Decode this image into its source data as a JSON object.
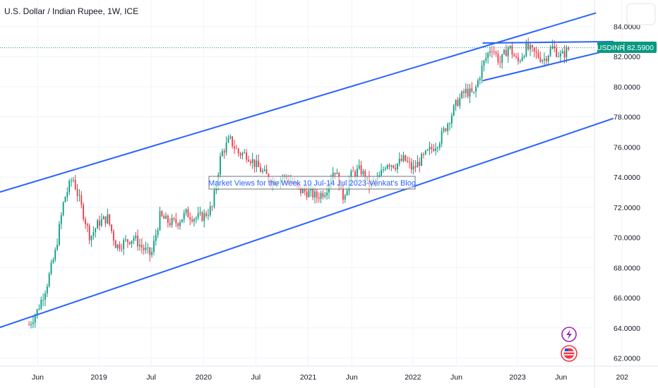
{
  "chart_title": "U.S. Dollar / Indian Rupee, 1W, ICE",
  "chart_data": {
    "type": "candlestick",
    "symbol": "USDINR",
    "last_price": "82.5900",
    "ylim": [
      61.5,
      84.5
    ],
    "y_ticks": [
      "84.0000",
      "82.0000",
      "80.0000",
      "78.0000",
      "76.0000",
      "74.0000",
      "72.0000",
      "70.0000",
      "68.0000",
      "66.0000",
      "64.0000",
      "62.0000"
    ],
    "x_ticks": [
      "Jun",
      "2019",
      "Jul",
      "2020",
      "Jul",
      "2021",
      "Jun",
      "2022",
      "Jun",
      "2023",
      "Jun",
      "202"
    ],
    "annotation": "Market Views for the Week 10 Jul-14 Jul 2023-Venkat's Blog",
    "colors": {
      "up": "#089981",
      "down": "#f23645",
      "trendline": "#2962ff",
      "last_price": "#089981"
    },
    "series": [
      {
        "name": "USDINR",
        "points": [
          {
            "t": "2018-05",
            "v": 64.2
          },
          {
            "t": "2018-06",
            "v": 65.2
          },
          {
            "t": "2018-07",
            "v": 66.8
          },
          {
            "t": "2018-08",
            "v": 69.0
          },
          {
            "t": "2018-09",
            "v": 72.5
          },
          {
            "t": "2018-10",
            "v": 74.0
          },
          {
            "t": "2018-11",
            "v": 72.0
          },
          {
            "t": "2018-12",
            "v": 70.0
          },
          {
            "t": "2019-01",
            "v": 71.0
          },
          {
            "t": "2019-02",
            "v": 71.3
          },
          {
            "t": "2019-03",
            "v": 69.4
          },
          {
            "t": "2019-04",
            "v": 69.7
          },
          {
            "t": "2019-05",
            "v": 70.0
          },
          {
            "t": "2019-06",
            "v": 69.3
          },
          {
            "t": "2019-07",
            "v": 68.8
          },
          {
            "t": "2019-08",
            "v": 71.4
          },
          {
            "t": "2019-09",
            "v": 71.0
          },
          {
            "t": "2019-10",
            "v": 71.0
          },
          {
            "t": "2019-11",
            "v": 71.6
          },
          {
            "t": "2019-12",
            "v": 71.3
          },
          {
            "t": "2020-01",
            "v": 71.4
          },
          {
            "t": "2020-02",
            "v": 72.0
          },
          {
            "t": "2020-03",
            "v": 75.5
          },
          {
            "t": "2020-04",
            "v": 76.5
          },
          {
            "t": "2020-05",
            "v": 75.6
          },
          {
            "t": "2020-06",
            "v": 75.5
          },
          {
            "t": "2020-07",
            "v": 74.8
          },
          {
            "t": "2020-08",
            "v": 74.2
          },
          {
            "t": "2020-09",
            "v": 73.7
          },
          {
            "t": "2020-10",
            "v": 74.0
          },
          {
            "t": "2020-11",
            "v": 73.8
          },
          {
            "t": "2020-12",
            "v": 73.1
          },
          {
            "t": "2021-01",
            "v": 73.0
          },
          {
            "t": "2021-02",
            "v": 72.7
          },
          {
            "t": "2021-03",
            "v": 73.1
          },
          {
            "t": "2021-04",
            "v": 74.6
          },
          {
            "t": "2021-05",
            "v": 72.7
          },
          {
            "t": "2021-06",
            "v": 74.2
          },
          {
            "t": "2021-07",
            "v": 74.5
          },
          {
            "t": "2021-08",
            "v": 73.5
          },
          {
            "t": "2021-09",
            "v": 73.8
          },
          {
            "t": "2021-10",
            "v": 75.0
          },
          {
            "t": "2021-11",
            "v": 74.8
          },
          {
            "t": "2021-12",
            "v": 75.2
          },
          {
            "t": "2022-01",
            "v": 74.5
          },
          {
            "t": "2022-02",
            "v": 75.2
          },
          {
            "t": "2022-03",
            "v": 75.8
          },
          {
            "t": "2022-04",
            "v": 76.4
          },
          {
            "t": "2022-05",
            "v": 77.6
          },
          {
            "t": "2022-06",
            "v": 78.9
          },
          {
            "t": "2022-07",
            "v": 79.7
          },
          {
            "t": "2022-08",
            "v": 79.5
          },
          {
            "t": "2022-09",
            "v": 81.4
          },
          {
            "t": "2022-10",
            "v": 82.7
          },
          {
            "t": "2022-11",
            "v": 81.6
          },
          {
            "t": "2022-12",
            "v": 82.7
          },
          {
            "t": "2023-01",
            "v": 81.6
          },
          {
            "t": "2023-02",
            "v": 82.6
          },
          {
            "t": "2023-03",
            "v": 82.2
          },
          {
            "t": "2023-04",
            "v": 81.8
          },
          {
            "t": "2023-05",
            "v": 82.6
          },
          {
            "t": "2023-06",
            "v": 82.0
          },
          {
            "t": "2023-07",
            "v": 82.59
          }
        ]
      }
    ]
  }
}
